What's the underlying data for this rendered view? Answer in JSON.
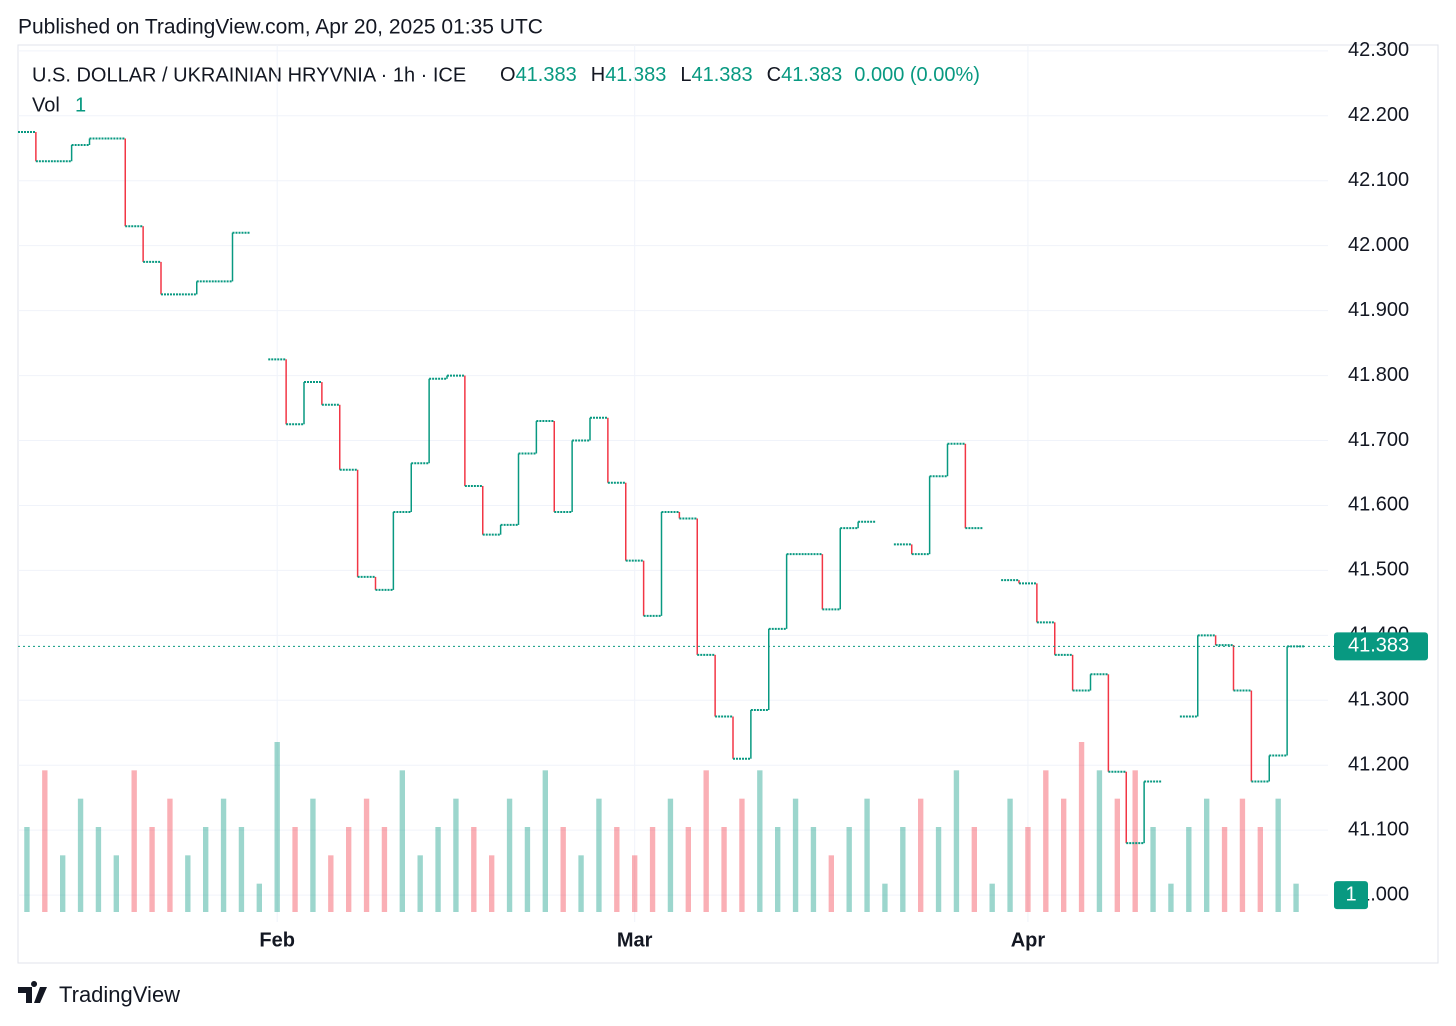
{
  "header": {
    "published": "Published on TradingView.com, Apr 20, 2025 01:35 UTC"
  },
  "chart_data": {
    "type": "step",
    "title": "U.S. DOLLAR / UKRAINIAN HRYVNIA · 1h · ICE",
    "ohlc": [
      {
        "label": "O",
        "value": 41.383
      },
      {
        "label": "H",
        "value": 41.383
      },
      {
        "label": "L",
        "value": 41.383
      },
      {
        "label": "C",
        "value": 41.383
      }
    ],
    "change": "0.000 (0.00%)",
    "volume_label": "Vol",
    "volume_value": 1,
    "categories": [
      null,
      null,
      null,
      null,
      null,
      null,
      null,
      null,
      null,
      null,
      null,
      null,
      null,
      null,
      "Feb",
      null,
      null,
      null,
      null,
      null,
      null,
      null,
      null,
      null,
      null,
      null,
      null,
      null,
      null,
      null,
      null,
      null,
      null,
      null,
      "Mar",
      null,
      null,
      null,
      null,
      null,
      null,
      null,
      null,
      null,
      null,
      null,
      null,
      null,
      null,
      null,
      null,
      null,
      null,
      null,
      null,
      null,
      "Apr",
      null,
      null,
      null,
      null,
      null,
      null,
      null,
      null,
      null,
      null,
      null,
      null,
      null,
      null,
      null
    ],
    "series": [
      {
        "name": "Price",
        "up_color": "#089981",
        "down_color": "#f23645",
        "values": [
          42.175,
          42.13,
          42.13,
          42.155,
          42.165,
          42.165,
          42.03,
          41.975,
          41.925,
          41.925,
          41.945,
          41.945,
          42.02,
          null,
          41.825,
          41.725,
          41.79,
          41.755,
          41.655,
          41.49,
          41.47,
          41.59,
          41.665,
          41.795,
          41.8,
          41.63,
          41.555,
          41.57,
          41.68,
          41.73,
          41.59,
          41.7,
          41.735,
          41.635,
          41.515,
          41.43,
          41.59,
          41.58,
          41.37,
          41.275,
          41.21,
          41.285,
          41.41,
          41.525,
          41.525,
          41.44,
          41.565,
          41.575,
          null,
          41.54,
          41.525,
          41.645,
          41.695,
          41.565,
          null,
          41.485,
          41.48,
          41.42,
          41.37,
          41.315,
          41.34,
          41.19,
          41.08,
          41.175,
          null,
          41.275,
          41.4,
          41.385,
          41.315,
          41.175,
          41.215,
          41.383
        ]
      },
      {
        "name": "Volume",
        "values": [
          3,
          5,
          2,
          4,
          3,
          2,
          5,
          3,
          4,
          2,
          3,
          4,
          3,
          1,
          6,
          3,
          4,
          2,
          3,
          4,
          3,
          5,
          2,
          3,
          4,
          3,
          2,
          4,
          3,
          5,
          3,
          2,
          4,
          3,
          2,
          3,
          4,
          3,
          5,
          3,
          4,
          5,
          3,
          4,
          3,
          2,
          3,
          4,
          1,
          3,
          4,
          3,
          5,
          3,
          1,
          4,
          3,
          5,
          4,
          6,
          5,
          4,
          5,
          3,
          1,
          3,
          4,
          3,
          4,
          3,
          4,
          1
        ]
      }
    ],
    "ylim": [
      40.974,
      42.309
    ],
    "yticks": [
      {
        "value": 41.0,
        "label": "41.000"
      },
      {
        "value": 41.1,
        "label": "41.100"
      },
      {
        "value": 41.2,
        "label": "41.200"
      },
      {
        "value": 41.3,
        "label": "41.300"
      },
      {
        "value": 41.4,
        "label": "41.400"
      },
      {
        "value": 41.5,
        "label": "41.500"
      },
      {
        "value": 41.6,
        "label": "41.600"
      },
      {
        "value": 41.7,
        "label": "41.700"
      },
      {
        "value": 41.8,
        "label": "41.800"
      },
      {
        "value": 41.9,
        "label": "41.900"
      },
      {
        "value": 42.0,
        "label": "42.000"
      },
      {
        "value": 42.1,
        "label": "42.100"
      },
      {
        "value": 42.2,
        "label": "42.200"
      },
      {
        "value": 42.3,
        "label": "42.300"
      }
    ],
    "last_price": 41.383,
    "grid": true
  },
  "footer": {
    "brand": "TradingView"
  }
}
